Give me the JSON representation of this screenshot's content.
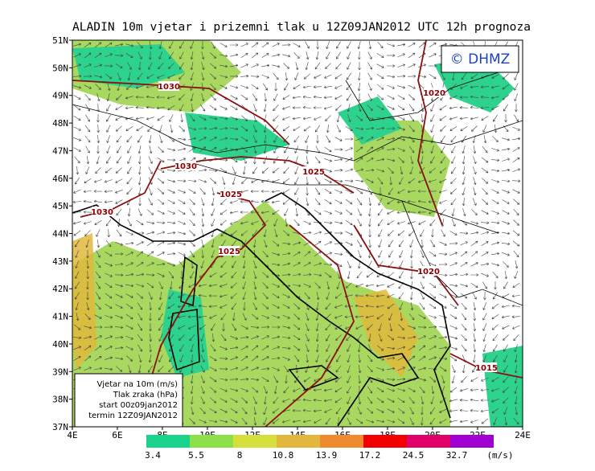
{
  "title": "ALADIN 10m vjetar i prizemni tlak u 12Z09JAN2012 UTC 12h prognoza",
  "badge": "© DHMZ",
  "lat_labels": [
    "51N",
    "50N",
    "49N",
    "48N",
    "47N",
    "46N",
    "45N",
    "44N",
    "43N",
    "42N",
    "41N",
    "40N",
    "39N",
    "38N",
    "37N"
  ],
  "lon_labels": [
    "4E",
    "6E",
    "8E",
    "10E",
    "12E",
    "14E",
    "16E",
    "18E",
    "20E",
    "22E",
    "24E"
  ],
  "isobar_labels": [
    "1030",
    "1020",
    "1030",
    "1025",
    "1025",
    "1030",
    "1025",
    "1020",
    "1015"
  ],
  "info_lines": [
    "Vjetar na 10m (m/s)",
    "Tlak zraka (hPa)",
    "start 00z09jan2012",
    "termin 12Z09JAN2012"
  ],
  "legend": {
    "values": [
      "3.4",
      "5.5",
      "8",
      "10.8",
      "13.9",
      "17.2",
      "24.5",
      "32.7"
    ],
    "colors": [
      "#1ad28c",
      "#8ee04a",
      "#d6e03c",
      "#e2b83c",
      "#f08a30",
      "#f00000",
      "#e0006a",
      "#a000d0"
    ],
    "unit": "(m/s)"
  }
}
